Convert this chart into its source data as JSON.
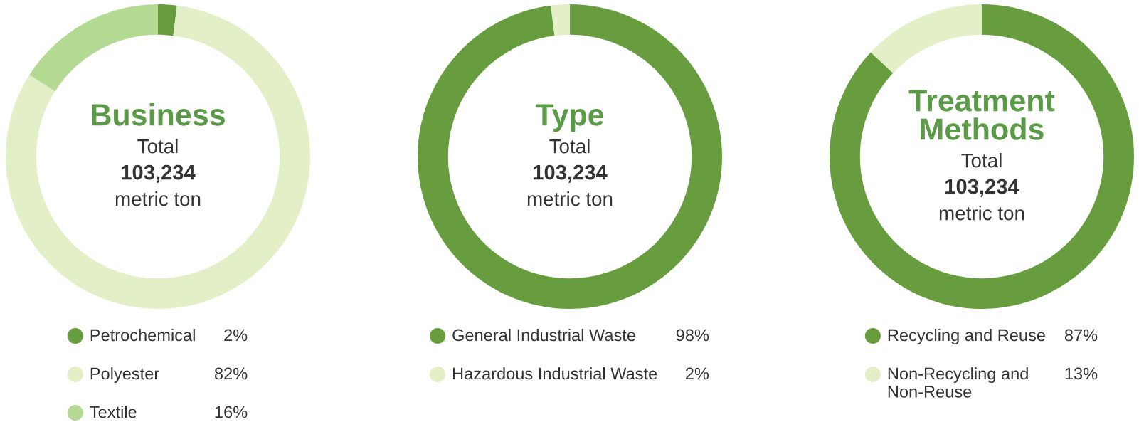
{
  "chart_data": [
    {
      "type": "donut",
      "title": "Business",
      "annotations": [
        "Total",
        "103,234",
        "metric ton"
      ],
      "categories": [
        "Petrochemical",
        "Polyester",
        "Textile"
      ],
      "values": [
        2,
        82,
        16
      ],
      "colors": [
        "#689d3f",
        "#e3efc6",
        "#b3d993"
      ],
      "value_labels": [
        "2%",
        "82%",
        "16%"
      ],
      "legend": "bottom"
    },
    {
      "type": "donut",
      "title": "Type",
      "annotations": [
        "Total",
        "103,234",
        "metric ton"
      ],
      "categories": [
        "General Industrial Waste",
        "Hazardous Industrial Waste"
      ],
      "values": [
        98,
        2
      ],
      "colors": [
        "#689d3f",
        "#e3efc6"
      ],
      "value_labels": [
        "98%",
        "2%"
      ],
      "legend": "bottom"
    },
    {
      "type": "donut",
      "title": "Treatment Methods",
      "annotations": [
        "Total",
        "103,234",
        "metric ton"
      ],
      "categories": [
        "Recycling and Reuse",
        "Non-Recycling and Non-Reuse"
      ],
      "values": [
        87,
        13
      ],
      "colors": [
        "#689d3f",
        "#e3efc6"
      ],
      "value_labels": [
        "87%",
        "13%"
      ],
      "legend": "bottom"
    }
  ]
}
